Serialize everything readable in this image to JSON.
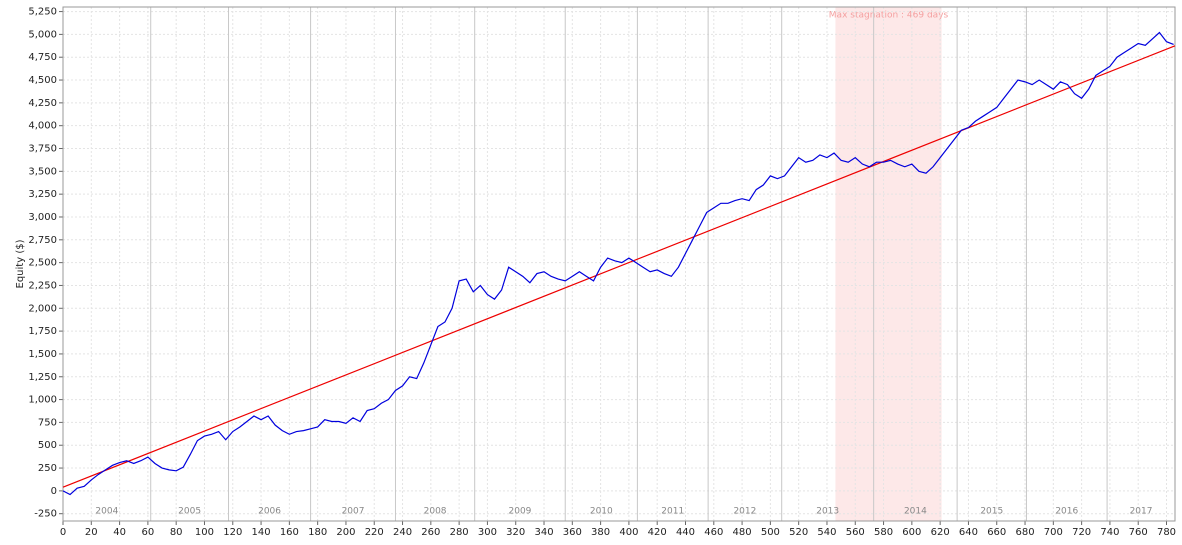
{
  "chart_data": {
    "type": "line",
    "y_label": "Equity ($)",
    "xlim": [
      0,
      786
    ],
    "ylim": [
      -330,
      5300
    ],
    "xticks": [
      0,
      20,
      40,
      60,
      80,
      100,
      120,
      140,
      160,
      180,
      200,
      220,
      240,
      260,
      280,
      300,
      320,
      340,
      360,
      380,
      400,
      420,
      440,
      460,
      480,
      500,
      520,
      540,
      560,
      580,
      600,
      620,
      640,
      660,
      680,
      700,
      720,
      740,
      760,
      780
    ],
    "yticks": [
      {
        "value": -250,
        "label": "-250"
      },
      0,
      250,
      500,
      750,
      {
        "value": 1000,
        "label": "1,000"
      },
      {
        "value": 1250,
        "label": "1,250"
      },
      {
        "value": 1500,
        "label": "1,500"
      },
      {
        "value": 1750,
        "label": "1,750"
      },
      {
        "value": 2000,
        "label": "2,000"
      },
      {
        "value": 2250,
        "label": "2,250"
      },
      {
        "value": 2500,
        "label": "2,500"
      },
      {
        "value": 2750,
        "label": "2,750"
      },
      {
        "value": 3000,
        "label": "3,000"
      },
      {
        "value": 3250,
        "label": "3,250"
      },
      {
        "value": 3500,
        "label": "3,500"
      },
      {
        "value": 3750,
        "label": "3,750"
      },
      {
        "value": 4000,
        "label": "4,000"
      },
      {
        "value": 4250,
        "label": "4,250"
      },
      {
        "value": 4500,
        "label": "4,500"
      },
      {
        "value": 4750,
        "label": "4,750"
      },
      {
        "value": 5000,
        "label": "5,000"
      },
      {
        "value": 5250,
        "label": "5,250"
      }
    ],
    "grid": true,
    "year_boundaries": [
      62,
      117,
      175,
      235,
      291,
      355,
      406,
      456,
      508,
      573,
      632,
      681,
      738
    ],
    "year_labels": [
      "2004",
      "2005",
      "2006",
      "2007",
      "2008",
      "2009",
      "2010",
      "2011",
      "2012",
      "2013",
      "2014",
      "2015",
      "2016",
      "2017"
    ],
    "stagnation": {
      "label": "Max stagnation : 469 days",
      "x": [
        546,
        621
      ],
      "color": "#fde8e8"
    },
    "series": [
      {
        "color": "#0000dd",
        "x": [
          0,
          5,
          10,
          15,
          20,
          25,
          30,
          35,
          40,
          45,
          50,
          55,
          60,
          65,
          70,
          75,
          80,
          85,
          90,
          95,
          100,
          105,
          110,
          115,
          120,
          125,
          130,
          135,
          140,
          145,
          150,
          155,
          160,
          165,
          170,
          175,
          180,
          185,
          190,
          195,
          200,
          205,
          210,
          215,
          220,
          225,
          230,
          235,
          240,
          245,
          250,
          255,
          260,
          265,
          270,
          275,
          280,
          285,
          290,
          295,
          300,
          305,
          310,
          315,
          320,
          325,
          330,
          335,
          340,
          345,
          350,
          355,
          360,
          365,
          370,
          375,
          380,
          385,
          390,
          395,
          400,
          405,
          410,
          415,
          420,
          425,
          430,
          435,
          440,
          445,
          450,
          455,
          460,
          465,
          470,
          475,
          480,
          485,
          490,
          495,
          500,
          505,
          510,
          515,
          520,
          525,
          530,
          535,
          540,
          545,
          550,
          555,
          560,
          565,
          570,
          575,
          580,
          585,
          590,
          595,
          600,
          605,
          610,
          615,
          620,
          625,
          630,
          635,
          640,
          645,
          650,
          655,
          660,
          665,
          670,
          675,
          680,
          685,
          690,
          695,
          700,
          705,
          710,
          715,
          720,
          725,
          730,
          735,
          740,
          745,
          750,
          755,
          760,
          765,
          770,
          775,
          780,
          785
        ],
        "values": [
          0,
          -40,
          30,
          50,
          120,
          180,
          230,
          280,
          310,
          330,
          300,
          330,
          370,
          300,
          250,
          230,
          220,
          260,
          400,
          550,
          600,
          620,
          650,
          560,
          650,
          700,
          760,
          820,
          780,
          820,
          720,
          660,
          620,
          650,
          660,
          680,
          700,
          780,
          760,
          760,
          740,
          800,
          760,
          880,
          900,
          960,
          1000,
          1100,
          1150,
          1250,
          1230,
          1400,
          1600,
          1800,
          1850,
          2000,
          2300,
          2320,
          2180,
          2250,
          2150,
          2100,
          2200,
          2450,
          2400,
          2350,
          2280,
          2380,
          2400,
          2350,
          2320,
          2300,
          2350,
          2400,
          2350,
          2300,
          2450,
          2550,
          2520,
          2500,
          2550,
          2500,
          2450,
          2400,
          2420,
          2380,
          2350,
          2450,
          2600,
          2750,
          2900,
          3050,
          3100,
          3150,
          3150,
          3180,
          3200,
          3180,
          3300,
          3350,
          3450,
          3420,
          3450,
          3550,
          3650,
          3600,
          3620,
          3680,
          3650,
          3700,
          3620,
          3600,
          3650,
          3580,
          3550,
          3600,
          3600,
          3620,
          3580,
          3550,
          3580,
          3500,
          3480,
          3550,
          3650,
          3750,
          3850,
          3950,
          3980,
          4050,
          4100,
          4150,
          4200,
          4300,
          4400,
          4500,
          4480,
          4450,
          4500,
          4450,
          4400,
          4480,
          4450,
          4350,
          4300,
          4400,
          4550,
          4600,
          4650,
          4750,
          4800,
          4850,
          4900,
          4880,
          4950,
          5020,
          4920,
          4890
        ]
      },
      {
        "color": "#ee0000",
        "x": [
          0,
          786
        ],
        "values": [
          40,
          4875
        ]
      }
    ]
  }
}
